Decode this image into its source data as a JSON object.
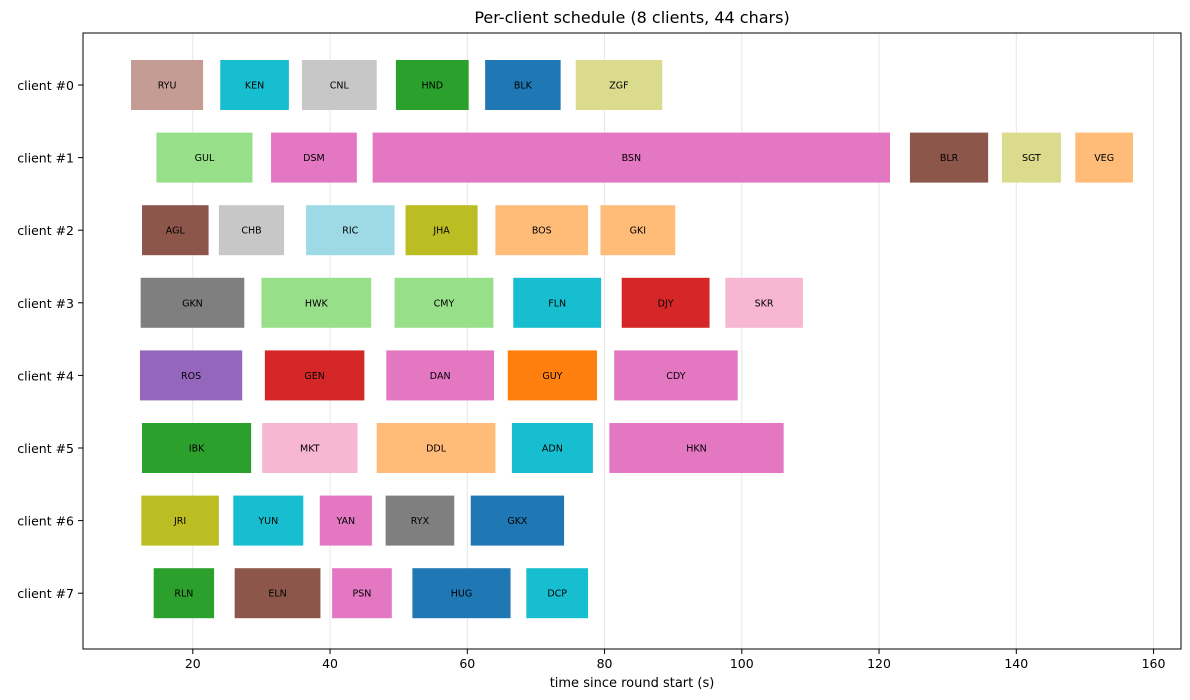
{
  "chart_data": {
    "type": "gantt",
    "title": "Per-client schedule (8 clients, 44 chars)",
    "xlabel": "time since round start (s)",
    "xlim": [
      4,
      164
    ],
    "xticks": [
      20,
      40,
      60,
      80,
      100,
      120,
      140,
      160
    ],
    "grid": "x",
    "clients": [
      "client #0",
      "client #1",
      "client #2",
      "client #3",
      "client #4",
      "client #5",
      "client #6",
      "client #7"
    ],
    "colors": {
      "blue": "#1f77b4",
      "orange": "#ff7f0e",
      "green": "#2ca02c",
      "red": "#d62728",
      "purple": "#9467bd",
      "brown": "#8c564b",
      "pink": "#e377c2",
      "gray": "#7f7f7f",
      "olive": "#bcbd22",
      "cyan": "#17becf",
      "light_green": "#98df8a",
      "light_orange": "#ffbb78",
      "light_brown": "#c49c94",
      "light_gray": "#c7c7c7",
      "light_pink": "#f7b6d2",
      "light_olive": "#dbdb8d",
      "light_cyan": "#9edae5"
    },
    "tasks": [
      {
        "client": 0,
        "label": "RYU",
        "start": 11.0,
        "end": 21.5,
        "color": "light_brown"
      },
      {
        "client": 0,
        "label": "KEN",
        "start": 24.0,
        "end": 34.0,
        "color": "cyan"
      },
      {
        "client": 0,
        "label": "CNL",
        "start": 35.9,
        "end": 46.8,
        "color": "light_gray"
      },
      {
        "client": 0,
        "label": "HND",
        "start": 49.6,
        "end": 60.2,
        "color": "green"
      },
      {
        "client": 0,
        "label": "BLK",
        "start": 62.6,
        "end": 73.6,
        "color": "blue"
      },
      {
        "client": 0,
        "label": "ZGF",
        "start": 75.8,
        "end": 88.4,
        "color": "light_olive"
      },
      {
        "client": 1,
        "label": "GUL",
        "start": 14.7,
        "end": 28.7,
        "color": "light_green"
      },
      {
        "client": 1,
        "label": "DSM",
        "start": 31.4,
        "end": 43.9,
        "color": "pink"
      },
      {
        "client": 1,
        "label": "BSN",
        "start": 46.2,
        "end": 121.6,
        "color": "pink"
      },
      {
        "client": 1,
        "label": "BLR",
        "start": 124.5,
        "end": 135.9,
        "color": "brown"
      },
      {
        "client": 1,
        "label": "SGT",
        "start": 137.9,
        "end": 146.5,
        "color": "light_olive"
      },
      {
        "client": 1,
        "label": "VEG",
        "start": 148.6,
        "end": 157.0,
        "color": "light_orange"
      },
      {
        "client": 2,
        "label": "AGL",
        "start": 12.6,
        "end": 22.3,
        "color": "brown"
      },
      {
        "client": 2,
        "label": "CHB",
        "start": 23.8,
        "end": 33.3,
        "color": "light_gray"
      },
      {
        "client": 2,
        "label": "RIC",
        "start": 36.5,
        "end": 49.4,
        "color": "light_cyan"
      },
      {
        "client": 2,
        "label": "JHA",
        "start": 51.0,
        "end": 61.5,
        "color": "olive"
      },
      {
        "client": 2,
        "label": "BOS",
        "start": 64.1,
        "end": 77.6,
        "color": "light_orange"
      },
      {
        "client": 2,
        "label": "GKI",
        "start": 79.4,
        "end": 90.3,
        "color": "light_orange"
      },
      {
        "client": 3,
        "label": "GKN",
        "start": 12.4,
        "end": 27.5,
        "color": "gray"
      },
      {
        "client": 3,
        "label": "HWK",
        "start": 30.0,
        "end": 46.0,
        "color": "light_green"
      },
      {
        "client": 3,
        "label": "CMY",
        "start": 49.4,
        "end": 63.8,
        "color": "light_green"
      },
      {
        "client": 3,
        "label": "FLN",
        "start": 66.7,
        "end": 79.5,
        "color": "cyan"
      },
      {
        "client": 3,
        "label": "DJY",
        "start": 82.5,
        "end": 95.3,
        "color": "red"
      },
      {
        "client": 3,
        "label": "SKR",
        "start": 97.6,
        "end": 108.9,
        "color": "light_pink"
      },
      {
        "client": 4,
        "label": "ROS",
        "start": 12.3,
        "end": 27.2,
        "color": "purple"
      },
      {
        "client": 4,
        "label": "GEN",
        "start": 30.5,
        "end": 45.0,
        "color": "red"
      },
      {
        "client": 4,
        "label": "DAN",
        "start": 48.2,
        "end": 63.9,
        "color": "pink"
      },
      {
        "client": 4,
        "label": "GUY",
        "start": 65.9,
        "end": 78.9,
        "color": "orange"
      },
      {
        "client": 4,
        "label": "CDY",
        "start": 81.4,
        "end": 99.4,
        "color": "pink"
      },
      {
        "client": 5,
        "label": "IBK",
        "start": 12.6,
        "end": 28.5,
        "color": "green"
      },
      {
        "client": 5,
        "label": "MKT",
        "start": 30.1,
        "end": 44.0,
        "color": "light_pink"
      },
      {
        "client": 5,
        "label": "DDL",
        "start": 46.8,
        "end": 64.1,
        "color": "light_orange"
      },
      {
        "client": 5,
        "label": "ADN",
        "start": 66.5,
        "end": 78.3,
        "color": "cyan"
      },
      {
        "client": 5,
        "label": "HKN",
        "start": 80.7,
        "end": 106.1,
        "color": "pink"
      },
      {
        "client": 6,
        "label": "JRI",
        "start": 12.5,
        "end": 23.8,
        "color": "olive"
      },
      {
        "client": 6,
        "label": "YUN",
        "start": 25.9,
        "end": 36.1,
        "color": "cyan"
      },
      {
        "client": 6,
        "label": "YAN",
        "start": 38.5,
        "end": 46.1,
        "color": "pink"
      },
      {
        "client": 6,
        "label": "RYX",
        "start": 48.1,
        "end": 58.1,
        "color": "gray"
      },
      {
        "client": 6,
        "label": "GKX",
        "start": 60.5,
        "end": 74.1,
        "color": "blue"
      },
      {
        "client": 7,
        "label": "RLN",
        "start": 14.3,
        "end": 23.1,
        "color": "green"
      },
      {
        "client": 7,
        "label": "ELN",
        "start": 26.1,
        "end": 38.6,
        "color": "brown"
      },
      {
        "client": 7,
        "label": "PSN",
        "start": 40.3,
        "end": 49.0,
        "color": "pink"
      },
      {
        "client": 7,
        "label": "HUG",
        "start": 52.0,
        "end": 66.3,
        "color": "blue"
      },
      {
        "client": 7,
        "label": "DCP",
        "start": 68.6,
        "end": 77.6,
        "color": "cyan"
      }
    ]
  }
}
